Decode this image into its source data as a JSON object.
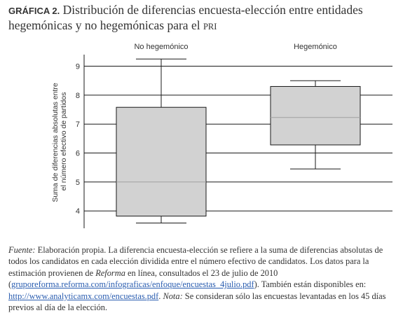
{
  "title": {
    "label": "GRÁFICA 2.",
    "line1": "Distribución de diferencias encuesta-elección entre entidades",
    "line2_prefix": "hegemónicas y no hegemónicas para el",
    "party": "PRI"
  },
  "chart_data": {
    "type": "boxplot",
    "ylabel_lines": [
      "Suma de diferencias absolutas entre",
      "el número efectivo de partidos"
    ],
    "ylim": [
      3.4,
      9.4
    ],
    "yticks": [
      4,
      5,
      6,
      7,
      8,
      9
    ],
    "grid": true,
    "categories": [
      "No hegemónico",
      "Hegemónico"
    ],
    "boxes": [
      {
        "name": "No hegemónico",
        "min": 3.58,
        "q1": 3.82,
        "median": 5.0,
        "q3": 7.58,
        "max": 9.25
      },
      {
        "name": "Hegemónico",
        "min": 5.45,
        "q1": 6.28,
        "median": 7.23,
        "q3": 8.3,
        "max": 8.5
      }
    ]
  },
  "note": {
    "source_label": "Fuente:",
    "source_text": " Elaboración propia. La diferencia encuesta-elección se refiere a la suma de diferencias absolutas de todos los candidatos en cada elección dividida entre el número efectivo de candidatos. Los datos para la estimación provienen de ",
    "source_name": "Reforma",
    "source_text2": " en línea, consultados el 23 de julio de 2010 (",
    "link1": "gruporeforma.reforma.com/infograficas/enfoque/encuestas_4julio.pdf",
    "source_text3": "). También están disponibles en: ",
    "link2": "http://www.analyticamx.com/encuestas.pdf",
    "source_text4": ". ",
    "note_label": "Nota:",
    "note_text": " Se consideran sólo las encuestas levantadas en los 45 días previos al día de la elección."
  },
  "colors": {
    "box_fill": "#d2d2d2",
    "median_line": "#a0a0a0",
    "line": "#1a1a1a",
    "text": "#333333"
  }
}
